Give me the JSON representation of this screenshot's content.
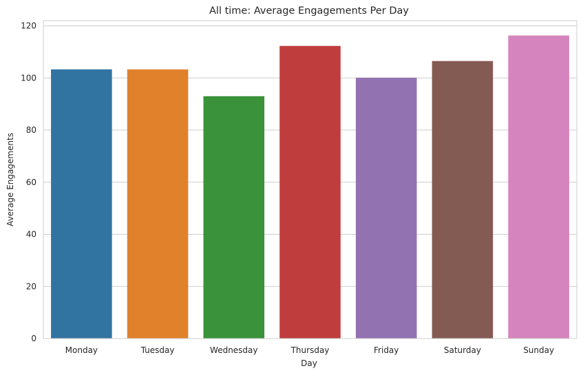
{
  "chart_data": {
    "type": "bar",
    "title": "All time: Average Engagements Per Day",
    "xlabel": "Day",
    "ylabel": "Average Engagements",
    "categories": [
      "Monday",
      "Tuesday",
      "Wednesday",
      "Thursday",
      "Friday",
      "Saturday",
      "Sunday"
    ],
    "values": [
      103.3,
      103.3,
      93.0,
      112.3,
      100.1,
      106.5,
      116.3
    ],
    "colors": [
      "#3274a1",
      "#e1812c",
      "#3a923a",
      "#c03d3e",
      "#9372b2",
      "#845b53",
      "#d684bd"
    ],
    "ylim": [
      0,
      122
    ],
    "yticks": [
      0,
      20,
      40,
      60,
      80,
      100,
      120
    ],
    "grid": "horizontal",
    "legend": "none"
  }
}
